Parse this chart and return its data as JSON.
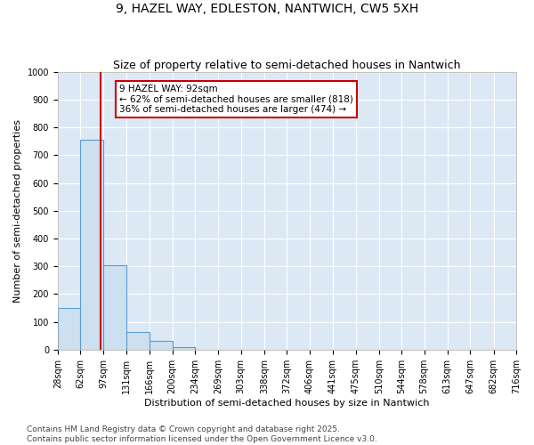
{
  "title": "9, HAZEL WAY, EDLESTON, NANTWICH, CW5 5XH",
  "subtitle": "Size of property relative to semi-detached houses in Nantwich",
  "xlabel": "Distribution of semi-detached houses by size in Nantwich",
  "ylabel": "Number of semi-detached properties",
  "bin_edges": [
    28,
    62,
    97,
    131,
    166,
    200,
    234,
    269,
    303,
    338,
    372,
    406,
    441,
    475,
    510,
    544,
    578,
    613,
    647,
    682,
    716
  ],
  "bar_heights": [
    150,
    755,
    305,
    65,
    30,
    10,
    0,
    0,
    0,
    0,
    0,
    0,
    0,
    0,
    0,
    0,
    0,
    0,
    0,
    0
  ],
  "bar_color": "#cce0f0",
  "bar_edge_color": "#5b9bd5",
  "property_value": 92,
  "annotation_line1": "9 HAZEL WAY: 92sqm",
  "annotation_line2": "← 62% of semi-detached houses are smaller (818)",
  "annotation_line3": "36% of semi-detached houses are larger (474) →",
  "annotation_box_color": "#ffffff",
  "annotation_box_edge_color": "#cc0000",
  "vline_color": "#cc0000",
  "ylim": [
    0,
    1000
  ],
  "yticks": [
    0,
    100,
    200,
    300,
    400,
    500,
    600,
    700,
    800,
    900,
    1000
  ],
  "background_color": "#dce9f5",
  "grid_color": "#ffffff",
  "footer_line1": "Contains HM Land Registry data © Crown copyright and database right 2025.",
  "footer_line2": "Contains public sector information licensed under the Open Government Licence v3.0.",
  "title_fontsize": 10,
  "subtitle_fontsize": 9,
  "axis_label_fontsize": 8,
  "tick_fontsize": 7,
  "annotation_fontsize": 7.5,
  "footer_fontsize": 6.5
}
